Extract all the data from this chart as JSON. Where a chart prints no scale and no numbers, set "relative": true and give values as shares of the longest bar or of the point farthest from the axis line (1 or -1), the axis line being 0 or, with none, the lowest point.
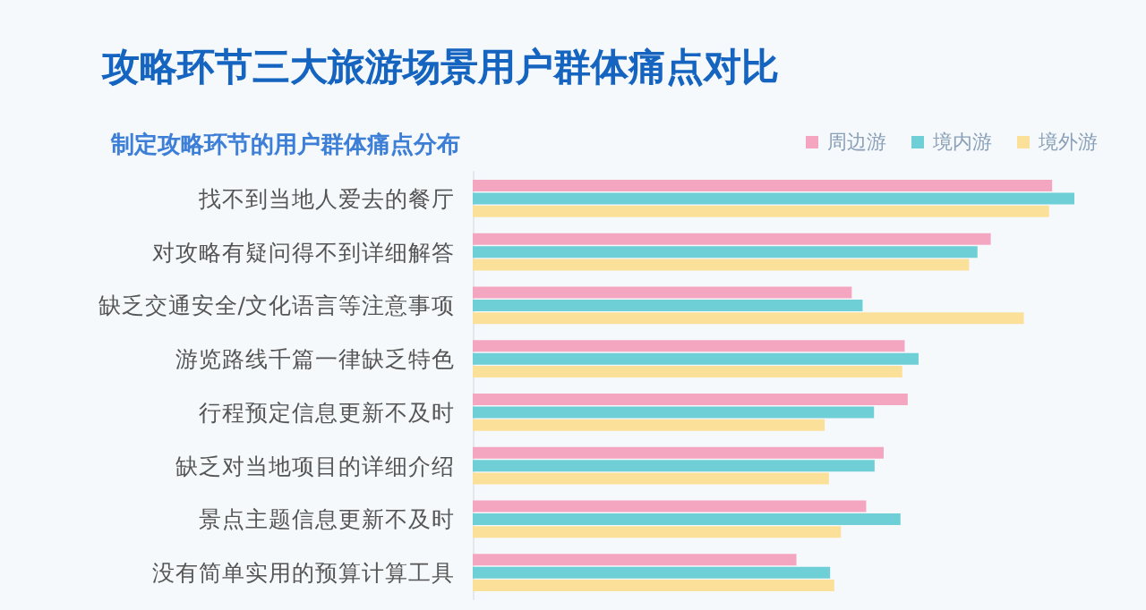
{
  "chart_data": {
    "type": "bar",
    "orientation": "horizontal",
    "relative": true,
    "title": "攻略环节三大旅游场景用户群体痛点对比",
    "subtitle": "制定攻略环节的用户群体痛点分布",
    "categories": [
      "找不到当地人爱去的餐厅",
      "对攻略有疑问得不到详细解答",
      "缺乏交通安全/文化语言等注意事项",
      "游览路线千篇一律缺乏特色",
      "行程预定信息更新不及时",
      "缺乏对当地项目的详细介绍",
      "景点主题信息更新不及时",
      "没有简单实用的预算计算工具"
    ],
    "series": [
      {
        "name": "周边游",
        "color": "#f4a6c0",
        "values": [
          0.963,
          0.861,
          0.63,
          0.718,
          0.723,
          0.683,
          0.654,
          0.538
        ]
      },
      {
        "name": "境内游",
        "color": "#6fcfd6",
        "values": [
          1,
          0.839,
          0.648,
          0.741,
          0.667,
          0.668,
          0.711,
          0.594
        ]
      },
      {
        "name": "境外游",
        "color": "#fbe09a",
        "values": [
          0.958,
          0.825,
          0.916,
          0.714,
          0.585,
          0.592,
          0.612,
          0.601
        ]
      }
    ],
    "legend": "top right"
  }
}
